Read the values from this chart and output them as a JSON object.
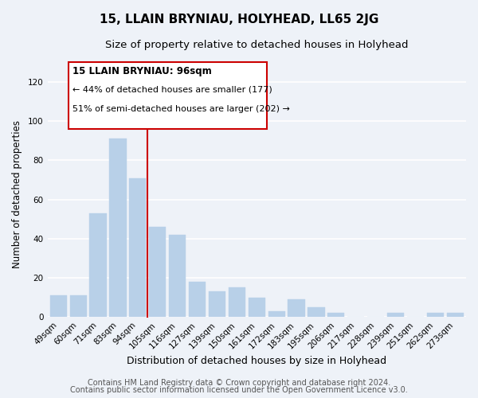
{
  "title": "15, LLAIN BRYNIAU, HOLYHEAD, LL65 2JG",
  "subtitle": "Size of property relative to detached houses in Holyhead",
  "xlabel": "Distribution of detached houses by size in Holyhead",
  "ylabel": "Number of detached properties",
  "categories": [
    "49sqm",
    "60sqm",
    "71sqm",
    "83sqm",
    "94sqm",
    "105sqm",
    "116sqm",
    "127sqm",
    "139sqm",
    "150sqm",
    "161sqm",
    "172sqm",
    "183sqm",
    "195sqm",
    "206sqm",
    "217sqm",
    "228sqm",
    "239sqm",
    "251sqm",
    "262sqm",
    "273sqm"
  ],
  "values": [
    11,
    11,
    53,
    91,
    71,
    46,
    42,
    18,
    13,
    15,
    10,
    3,
    9,
    5,
    2,
    0,
    0,
    2,
    0,
    2,
    2
  ],
  "bar_color": "#b8d0e8",
  "vline_color": "#cc0000",
  "annotation_title": "15 LLAIN BRYNIAU: 96sqm",
  "annotation_line1": "← 44% of detached houses are smaller (177)",
  "annotation_line2": "51% of semi-detached houses are larger (202) →",
  "annotation_box_color": "#ffffff",
  "annotation_box_edge": "#cc0000",
  "ylim": [
    0,
    125
  ],
  "yticks": [
    0,
    20,
    40,
    60,
    80,
    100,
    120
  ],
  "footer1": "Contains HM Land Registry data © Crown copyright and database right 2024.",
  "footer2": "Contains public sector information licensed under the Open Government Licence v3.0.",
  "bg_color": "#eef2f8",
  "plot_bg_color": "#eef2f8",
  "grid_color": "#ffffff",
  "title_fontsize": 11,
  "subtitle_fontsize": 9.5,
  "xlabel_fontsize": 9,
  "ylabel_fontsize": 8.5,
  "tick_fontsize": 7.5,
  "footer_fontsize": 7
}
